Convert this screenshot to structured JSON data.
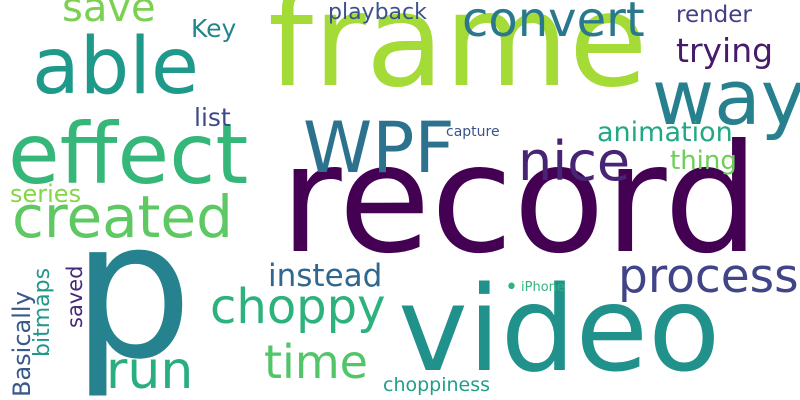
{
  "words": [
    {
      "text": "record",
      "color": "#440154",
      "orientation": "horizontal"
    },
    {
      "text": "frame",
      "color": "#a5db36",
      "orientation": "horizontal"
    },
    {
      "text": "video",
      "color": "#21918c",
      "orientation": "horizontal"
    },
    {
      "text": "p",
      "color": "#26828e",
      "orientation": "horizontal"
    },
    {
      "text": "effect",
      "color": "#35b779",
      "orientation": "horizontal"
    },
    {
      "text": "able",
      "color": "#1f9a8a",
      "orientation": "horizontal"
    },
    {
      "text": "WPF",
      "color": "#2c728e",
      "orientation": "horizontal"
    },
    {
      "text": "way",
      "color": "#27808e",
      "orientation": "horizontal"
    },
    {
      "text": "created",
      "color": "#5ec962",
      "orientation": "horizontal"
    },
    {
      "text": "nice",
      "color": "#482475",
      "orientation": "horizontal"
    },
    {
      "text": "convert",
      "color": "#2a788e",
      "orientation": "horizontal"
    },
    {
      "text": "choppy",
      "color": "#2db27d",
      "orientation": "horizontal"
    },
    {
      "text": "process",
      "color": "#414487",
      "orientation": "horizontal"
    },
    {
      "text": "run",
      "color": "#29af7f",
      "orientation": "horizontal"
    },
    {
      "text": "time",
      "color": "#52c569",
      "orientation": "horizontal"
    },
    {
      "text": "save",
      "color": "#7ad151",
      "orientation": "horizontal"
    },
    {
      "text": "trying",
      "color": "#481a6c",
      "orientation": "horizontal"
    },
    {
      "text": "instead",
      "color": "#31668e",
      "orientation": "horizontal"
    },
    {
      "text": "animation",
      "color": "#22a884",
      "orientation": "horizontal"
    },
    {
      "text": "playback",
      "color": "#3b528b",
      "orientation": "horizontal"
    },
    {
      "text": "render",
      "color": "#433e85",
      "orientation": "horizontal"
    },
    {
      "text": "Key",
      "color": "#25858e",
      "orientation": "horizontal"
    },
    {
      "text": "list",
      "color": "#3e4989",
      "orientation": "horizontal"
    },
    {
      "text": "thing",
      "color": "#6ece58",
      "orientation": "horizontal"
    },
    {
      "text": "series",
      "color": "#86d549",
      "orientation": "horizontal"
    },
    {
      "text": "Basically",
      "color": "#38598c",
      "orientation": "vertical"
    },
    {
      "text": "bitmaps",
      "color": "#1f988b",
      "orientation": "vertical"
    },
    {
      "text": "saved",
      "color": "#482878",
      "orientation": "vertical"
    },
    {
      "text": "choppiness",
      "color": "#1f9e89",
      "orientation": "horizontal"
    },
    {
      "text": "capture",
      "color": "#3b528b",
      "orientation": "horizontal"
    },
    {
      "text": "iPhone",
      "color": "#2fb47c",
      "orientation": "horizontal"
    },
    {
      "text": "•",
      "color": "#2fb47c",
      "orientation": "horizontal"
    }
  ]
}
